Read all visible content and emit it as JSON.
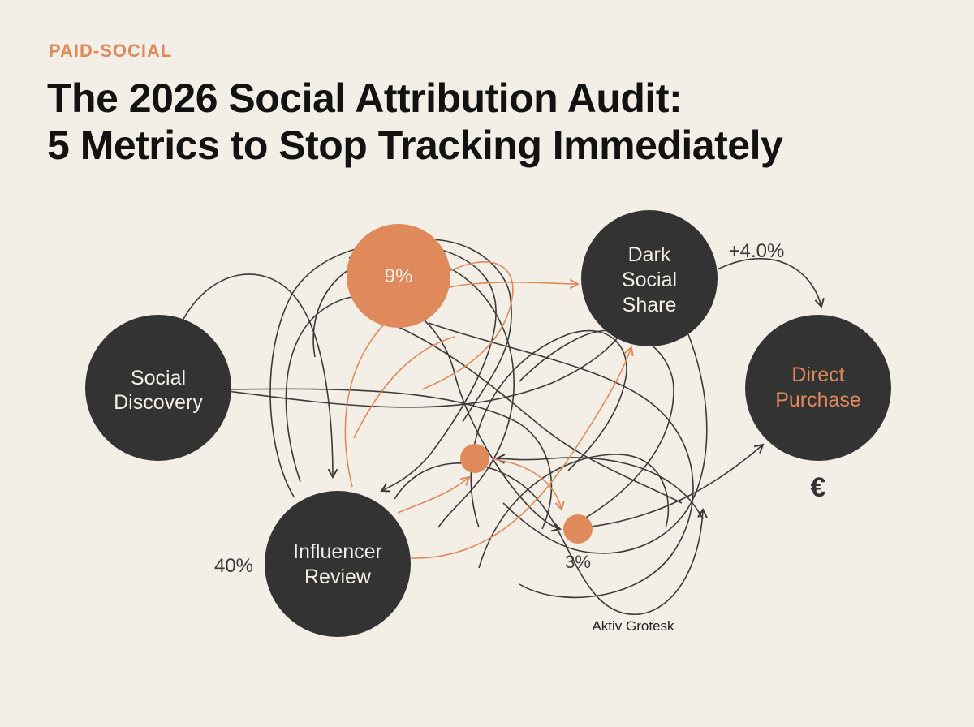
{
  "header": {
    "kicker": "PAID-SOCIAL",
    "title_line1": "The 2026 Social Attribution Audit:",
    "title_line2": "5 Metrics to Stop Tracking Immediately"
  },
  "diagram": {
    "nodes": {
      "social_discovery": {
        "line1": "Social",
        "line2": "Discovery"
      },
      "dark_social": {
        "line1": "Dark",
        "line2": "Social",
        "line3": "Share"
      },
      "direct_purchase": {
        "line1": "Direct",
        "line2": "Purchase"
      },
      "influencer_review": {
        "line1": "Influencer",
        "line2": "Review"
      },
      "top_metric": {
        "label": "9%"
      }
    },
    "metrics": {
      "lift": "+4.0%",
      "influencer_share": "40%",
      "small_node_share": "3%"
    },
    "currency_symbol": "€",
    "caption": "Aktiv Grotesk"
  },
  "colors": {
    "background": "#f3efe6",
    "dark_node": "#333333",
    "accent": "#e08a5c",
    "line": "#3a3a3a",
    "text": "#121212"
  }
}
